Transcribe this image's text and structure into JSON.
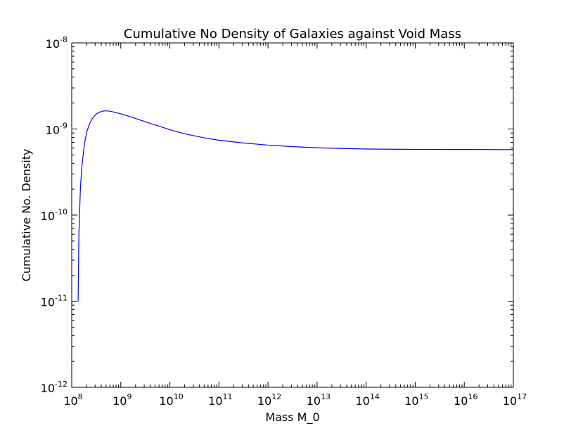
{
  "chart_data": {
    "type": "line",
    "title": "Cumulative No Density of Galaxies against Void Mass",
    "xlabel": "Mass M_0",
    "ylabel": "Cumulative No. Density",
    "x_scale": "log",
    "y_scale": "log",
    "xlim": [
      100000000.0,
      1e+17
    ],
    "ylim": [
      1e-12,
      1e-08
    ],
    "grid": false,
    "legend": "none",
    "x_ticks": [
      {
        "base": "10",
        "exp": "8"
      },
      {
        "base": "10",
        "exp": "9"
      },
      {
        "base": "10",
        "exp": "10"
      },
      {
        "base": "10",
        "exp": "11"
      },
      {
        "base": "10",
        "exp": "12"
      },
      {
        "base": "10",
        "exp": "13"
      },
      {
        "base": "10",
        "exp": "14"
      },
      {
        "base": "10",
        "exp": "15"
      },
      {
        "base": "10",
        "exp": "16"
      },
      {
        "base": "10",
        "exp": "17"
      }
    ],
    "y_ticks": [
      {
        "base": "10",
        "exp": "-12"
      },
      {
        "base": "10",
        "exp": "-11"
      },
      {
        "base": "10",
        "exp": "-10"
      },
      {
        "base": "10",
        "exp": "-9"
      },
      {
        "base": "10",
        "exp": "-8"
      }
    ],
    "series": [
      {
        "color": "#0000ff",
        "x": [
          135000000.0,
          140000000.0,
          150000000.0,
          160000000.0,
          180000000.0,
          200000000.0,
          230000000.0,
          270000000.0,
          320000000.0,
          380000000.0,
          450000000.0,
          550000000.0,
          700000000.0,
          1000000000.0,
          1500000000.0,
          2500000000.0,
          4000000000.0,
          7000000000.0,
          10000000000.0,
          20000000000.0,
          50000000000.0,
          100000000000.0,
          300000000000.0,
          1000000000000.0,
          3000000000000.0,
          10000000000000.0,
          30000000000000.0,
          100000000000000.0,
          1000000000000000.0,
          1e+16,
          1e+17
        ],
        "y": [
          1e-11,
          6e-11,
          2e-10,
          3.5e-10,
          6.5e-10,
          9e-10,
          1.15e-09,
          1.35e-09,
          1.5e-09,
          1.58e-09,
          1.62e-09,
          1.62e-09,
          1.58e-09,
          1.5e-09,
          1.4e-09,
          1.27e-09,
          1.16e-09,
          1.05e-09,
          9.8e-10,
          8.8e-10,
          7.9e-10,
          7.4e-10,
          6.9e-10,
          6.5e-10,
          6.25e-10,
          6.05e-10,
          5.95e-10,
          5.85e-10,
          5.8e-10,
          5.78e-10,
          5.76e-10
        ]
      }
    ]
  }
}
